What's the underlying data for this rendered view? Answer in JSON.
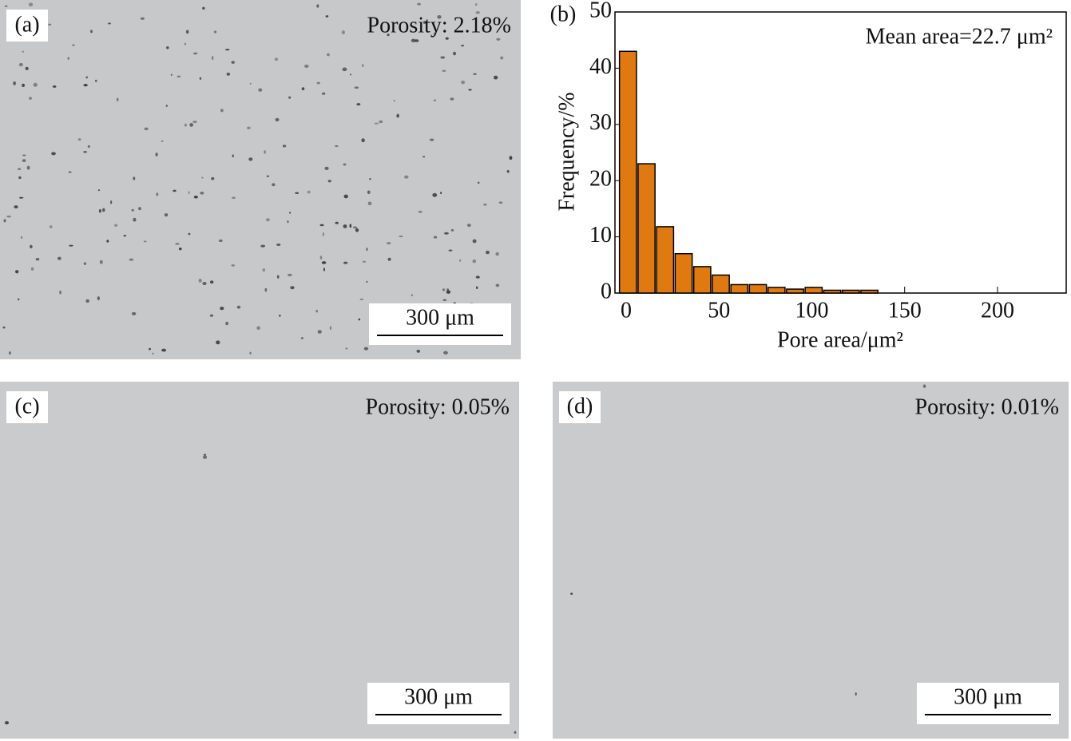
{
  "panels": [
    {
      "label": "(a)",
      "porosity": "Porosity: 2.18%",
      "scale_bar": "300 μm"
    },
    {
      "label": "(c)",
      "porosity": "Porosity: 0.05%",
      "scale_bar": "300 μm"
    },
    {
      "label": "(d)",
      "porosity": "Porosity: 0.01%",
      "scale_bar": "300 μm"
    }
  ],
  "chart_data": {
    "type": "histogram",
    "panel_label": "(b)",
    "annotation": "Mean area=22.7 μm²",
    "x_label": "Pore area/μm²",
    "y_label": "Frequency/%",
    "bins": [
      -4,
      6,
      16,
      26,
      36,
      46,
      56,
      66,
      76,
      86,
      96,
      106,
      116,
      126,
      136
    ],
    "values": [
      43,
      23,
      11.8,
      7,
      4.7,
      3.2,
      1.5,
      1.5,
      1,
      0.7,
      1,
      0.5,
      0.5,
      0.5
    ],
    "color": "#e07a10",
    "xlim": [
      -6,
      237
    ],
    "ylim": [
      0,
      50
    ],
    "xticks": [
      0,
      50,
      100,
      150,
      200
    ],
    "yticks": [
      0,
      10,
      20,
      30,
      40,
      50
    ]
  }
}
